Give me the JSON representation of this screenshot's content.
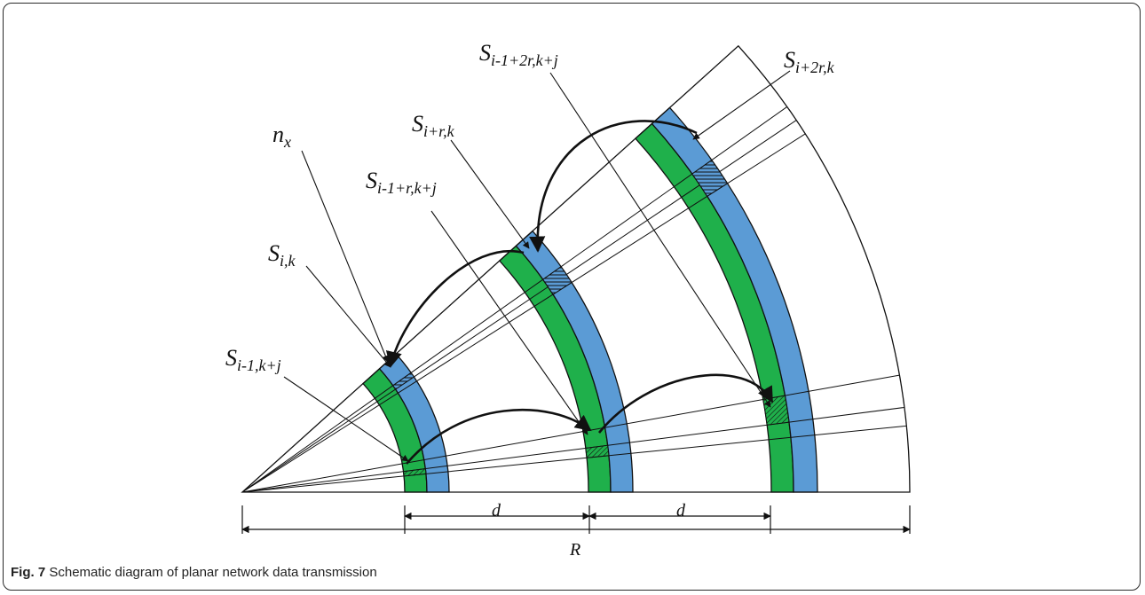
{
  "figure": {
    "caption_label": "Fig. 7",
    "caption_text": "Schematic diagram of planar network data transmission"
  },
  "labels": {
    "n_x": {
      "main": "n",
      "sub": "x"
    },
    "s_ik": {
      "main": "S",
      "sub": "i,k"
    },
    "s_i_minus1": {
      "main": "S",
      "sub": "i-1,k+j"
    },
    "s_ir": {
      "main": "S",
      "sub": "i+r,k"
    },
    "s_i_minus1_r": {
      "main": "S",
      "sub": "i-1+r,k+j"
    },
    "s_i_minus1_2r": {
      "main": "S",
      "sub": "i-1+2r,k+j"
    },
    "s_i2r": {
      "main": "S",
      "sub": "i+2r,k"
    },
    "dim_d1": "d",
    "dim_d2": "d",
    "dim_R": "R"
  },
  "colors": {
    "ring_green": "#1fb04b",
    "ring_blue": "#5b9bd5",
    "line": "#111111"
  }
}
